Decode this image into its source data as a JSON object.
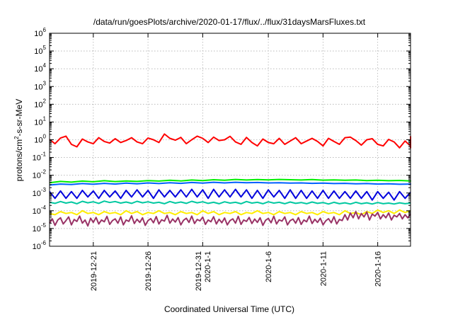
{
  "chart_data": {
    "type": "line",
    "title": "/data/run/goesPlots/archive/2020-01-17/flux/../flux/31daysMarsFluxes.txt",
    "xlabel": "Coordinated Universal Time (UTC)",
    "ylabel": "protons/cm2-s-sr-MeV",
    "ylabel_parts": {
      "base": "protons/cm",
      "sup": "2",
      "rest": "-s-sr-MeV"
    },
    "y_scale": "log",
    "ylim": [
      1e-06,
      1000000.0
    ],
    "xlim": [
      "2019-12-17",
      "2020-01-19"
    ],
    "grid": true,
    "y_ticks": [
      {
        "value": 1e-06,
        "base": "10",
        "exp": "-6"
      },
      {
        "value": 1e-05,
        "base": "10",
        "exp": "-5"
      },
      {
        "value": 0.0001,
        "base": "10",
        "exp": "-4"
      },
      {
        "value": 0.001,
        "base": "10",
        "exp": "-3"
      },
      {
        "value": 0.01,
        "base": "10",
        "exp": "-2"
      },
      {
        "value": 0.1,
        "base": "10",
        "exp": "-1"
      },
      {
        "value": 1,
        "base": "10",
        "exp": "0"
      },
      {
        "value": 10,
        "base": "10",
        "exp": "1"
      },
      {
        "value": 100,
        "base": "10",
        "exp": "2"
      },
      {
        "value": 1000,
        "base": "10",
        "exp": "3"
      },
      {
        "value": 10000,
        "base": "10",
        "exp": "4"
      },
      {
        "value": 100000,
        "base": "10",
        "exp": "5"
      },
      {
        "value": 1000000,
        "base": "10",
        "exp": "6"
      }
    ],
    "x_ticks": [
      {
        "date": "2019-12-21",
        "labels": [
          "2019-12-21"
        ]
      },
      {
        "date": "2019-12-26",
        "labels": [
          "2019-12-26"
        ]
      },
      {
        "date": "2019-12-31",
        "labels": [
          "2019-12-31",
          "2020-1-1"
        ]
      },
      {
        "date": "2020-01-06",
        "labels": [
          "2020-1-6"
        ]
      },
      {
        "date": "2020-01-11",
        "labels": [
          "2020-1-11"
        ]
      },
      {
        "date": "2020-01-16",
        "labels": [
          "2020-1-16"
        ]
      }
    ],
    "series": [
      {
        "color": "#ff0000",
        "x_start": "2019-12-17",
        "x_step_days": 0.5,
        "values": [
          1.05,
          0.6,
          1.25,
          1.6,
          0.55,
          0.4,
          1.1,
          0.75,
          0.6,
          1.3,
          0.8,
          0.65,
          1.15,
          0.7,
          0.9,
          1.3,
          0.75,
          0.6,
          1.25,
          1.0,
          0.7,
          2.1,
          1.2,
          0.95,
          1.35,
          0.6,
          1.0,
          1.6,
          1.2,
          0.7,
          1.4,
          0.9,
          1.0,
          1.55,
          0.75,
          0.55,
          1.35,
          0.7,
          0.45,
          1.1,
          0.7,
          0.6,
          1.2,
          0.55,
          0.85,
          1.3,
          0.6,
          0.85,
          1.2,
          0.8,
          0.45,
          1.2,
          0.8,
          0.55,
          1.3,
          1.4,
          0.9,
          0.5,
          1.0,
          1.15,
          0.55,
          0.45,
          1.05,
          0.75,
          0.35,
          0.85,
          0.45,
          0.6,
          1.5,
          0.35,
          0.65,
          0.9,
          0.8,
          1.35
        ]
      },
      {
        "color": "#00ee00",
        "x_start": "2019-12-17",
        "x_step_days": 1,
        "values": [
          0.0038,
          0.0045,
          0.0041,
          0.0047,
          0.0043,
          0.0049,
          0.0044,
          0.0048,
          0.0045,
          0.005,
          0.0047,
          0.0052,
          0.0048,
          0.0054,
          0.005,
          0.0056,
          0.0052,
          0.0058,
          0.0054,
          0.0057,
          0.0055,
          0.0058,
          0.0056,
          0.0054,
          0.0057,
          0.0053,
          0.0055,
          0.0052,
          0.0054,
          0.005,
          0.0052,
          0.0049,
          0.0051,
          0.0048,
          0.005
        ]
      },
      {
        "color": "#0060ff",
        "x_start": "2019-12-17",
        "x_step_days": 1,
        "values": [
          0.0028,
          0.0032,
          0.003,
          0.0034,
          0.0031,
          0.0035,
          0.0032,
          0.0036,
          0.0033,
          0.0037,
          0.0034,
          0.0038,
          0.0035,
          0.0039,
          0.0036,
          0.004,
          0.0037,
          0.004,
          0.0038,
          0.0039,
          0.0037,
          0.0038,
          0.0036,
          0.0037,
          0.0035,
          0.0036,
          0.0034,
          0.0035,
          0.0033,
          0.0034,
          0.0032,
          0.0033,
          0.0031,
          0.0032,
          0.003
        ]
      },
      {
        "color": "#0000dd",
        "x_start": "2019-12-17",
        "x_step_days": 0.5,
        "values": [
          0.0012,
          0.0005,
          0.0013,
          0.0005,
          0.0012,
          0.0005,
          0.0014,
          0.0006,
          0.0013,
          0.0005,
          0.0014,
          0.0006,
          0.0013,
          0.0005,
          0.0014,
          0.0006,
          0.0015,
          0.0006,
          0.0014,
          0.0005,
          0.0015,
          0.0006,
          0.0014,
          0.0006,
          0.0015,
          0.0006,
          0.0016,
          0.0006,
          0.0015,
          0.0005,
          0.0016,
          0.0006,
          0.0015,
          0.0006,
          0.0016,
          0.0006,
          0.0015,
          0.0005,
          0.0014,
          0.0005,
          0.0015,
          0.0006,
          0.0014,
          0.0005,
          0.0015,
          0.0005,
          0.0014,
          0.0005,
          0.0013,
          0.0005,
          0.0014,
          0.0005,
          0.0013,
          0.0005,
          0.0012,
          0.0005,
          0.0013,
          0.0005,
          0.0012,
          0.0004,
          0.0012,
          0.0005,
          0.0011,
          0.0004,
          0.0012,
          0.0005,
          0.0011
        ]
      },
      {
        "color": "#00c8a0",
        "x_start": "2019-12-17",
        "x_step_days": 0.5,
        "values": [
          0.0003,
          0.00026,
          0.00033,
          0.00027,
          0.00031,
          0.00025,
          0.00034,
          0.00028,
          0.00032,
          0.00026,
          0.00035,
          0.00029,
          0.00033,
          0.00027,
          0.00031,
          0.00026,
          0.00034,
          0.00028,
          0.00032,
          0.00027,
          0.0003,
          0.00025,
          0.00033,
          0.00027,
          0.00031,
          0.00026,
          0.00034,
          0.00028,
          0.00032,
          0.00026,
          0.0003,
          0.00025,
          0.00032,
          0.00027,
          0.0003,
          0.00025,
          0.00033,
          0.00027,
          0.0003,
          0.00025,
          0.00032,
          0.00027,
          0.0003,
          0.00025,
          0.00031,
          0.00026,
          0.00029,
          0.00025,
          0.00031,
          0.00026,
          0.00029,
          0.00024,
          0.0003,
          0.00025,
          0.00028,
          0.00024,
          0.0003,
          0.00025,
          0.00028,
          0.00024,
          0.00029,
          0.00025,
          0.00027,
          0.00024,
          0.00028,
          0.00025,
          0.00027
        ]
      },
      {
        "color": "#ffee00",
        "x_start": "2019-12-17",
        "x_step_days": 0.5,
        "values": [
          7e-05,
          6e-05,
          9e-05,
          7e-05,
          8e-05,
          6e-05,
          0.0001,
          7e-05,
          8e-05,
          6e-05,
          9e-05,
          7e-05,
          8e-05,
          6e-05,
          0.0001,
          7e-05,
          9e-05,
          6e-05,
          8e-05,
          7e-05,
          0.0001,
          7e-05,
          8e-05,
          6e-05,
          9e-05,
          7e-05,
          8e-05,
          6e-05,
          0.0001,
          7e-05,
          9e-05,
          6e-05,
          8e-05,
          7e-05,
          9e-05,
          6e-05,
          8e-05,
          7e-05,
          0.0001,
          7e-05,
          8e-05,
          6e-05,
          9e-05,
          7e-05,
          8e-05,
          6e-05,
          9e-05,
          7e-05,
          8e-05,
          6e-05,
          9e-05,
          7e-05,
          8e-05,
          6e-05,
          0.0001,
          7e-05,
          8e-05,
          6e-05,
          9e-05,
          7e-05,
          0.00011,
          8e-05,
          0.0001,
          7e-05,
          0.00011,
          8e-05,
          0.0001
        ]
      },
      {
        "color": "#993366",
        "x_start": "2019-12-17",
        "x_step_days": 0.25,
        "values": [
          2e-05,
          3.5e-05,
          1.5e-05,
          3e-05,
          4e-05,
          1.8e-05,
          2.8e-05,
          4.5e-05,
          1.6e-05,
          3.2e-05,
          2.5e-05,
          5e-05,
          2e-05,
          3e-05,
          1.4e-05,
          3.8e-05,
          2.2e-05,
          4.2e-05,
          1.8e-05,
          3e-05,
          2.4e-05,
          4.8e-05,
          1.7e-05,
          2.8e-05,
          3.5e-05,
          2e-05,
          4.5e-05,
          1.6e-05,
          3e-05,
          2.5e-05,
          5.2e-05,
          1.9e-05,
          3.3e-05,
          2.2e-05,
          4e-05,
          1.5e-05,
          2.8e-05,
          3.6e-05,
          2.1e-05,
          4.7e-05,
          1.8e-05,
          3.1e-05,
          2.6e-05,
          5.5e-05,
          2e-05,
          3.4e-05,
          2.3e-05,
          4.1e-05,
          1.6e-05,
          2.9e-05,
          3.8e-05,
          2.2e-05,
          5e-05,
          1.9e-05,
          3.2e-05,
          2.7e-05,
          4.4e-05,
          1.7e-05,
          3e-05,
          2.4e-05,
          4.6e-05,
          1.8e-05,
          3.3e-05,
          2.1e-05,
          3.9e-05,
          1.6e-05,
          2.8e-05,
          3.5e-05,
          2e-05,
          4.8e-05,
          1.7e-05,
          3e-05,
          2.5e-05,
          4.2e-05,
          1.9e-05,
          3.4e-05,
          2.2e-05,
          4e-05,
          1.5e-05,
          2.9e-05,
          3.7e-05,
          2.1e-05,
          4.9e-05,
          1.8e-05,
          3.1e-05,
          2.6e-05,
          4.5e-05,
          1.6e-05,
          2.8e-05,
          3.4e-05,
          2e-05,
          4.1e-05,
          1.7e-05,
          3e-05,
          2.4e-05,
          5e-05,
          1.9e-05,
          3.3e-05,
          2.2e-05,
          3.8e-05,
          1.6e-05,
          2.7e-05,
          3.6e-05,
          2.1e-05,
          4.6e-05,
          1.8e-05,
          3.2e-05,
          2.8e-05,
          6e-05,
          3e-05,
          7.5e-05,
          4e-05,
          9e-05,
          3.5e-05,
          7e-05,
          4.5e-05,
          8.5e-05,
          3e-05,
          6.5e-05,
          5e-05,
          8e-05,
          3.5e-05,
          6e-05,
          4e-05,
          7.5e-05,
          3e-05,
          5.5e-05,
          4.5e-05,
          7e-05,
          3.5e-05,
          6e-05,
          4e-05,
          6.5e-05
        ]
      }
    ]
  }
}
